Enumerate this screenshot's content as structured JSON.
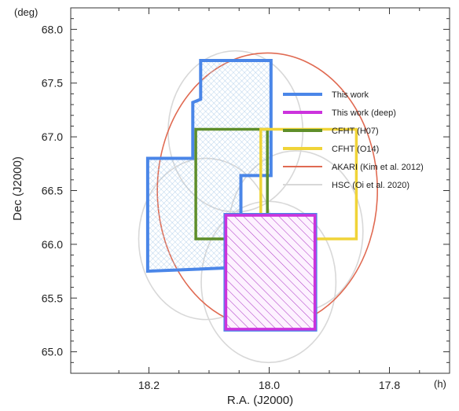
{
  "chart_data": {
    "type": "line",
    "xlabel": "R.A. (J2000)",
    "ylabel": "Dec (J2000)",
    "x_unit": "(h)",
    "y_unit": "(deg)",
    "x_inverted": true,
    "xlim": [
      18.33,
      17.7
    ],
    "ylim": [
      64.8,
      68.2
    ],
    "xticks": [
      18.2,
      18.0,
      17.8
    ],
    "xticklabels": [
      "18.2",
      "18.0",
      "17.8"
    ],
    "yticks": [
      65.0,
      65.5,
      66.0,
      66.5,
      67.0,
      67.5,
      68.0
    ],
    "yticklabels": [
      "65.0",
      "65.5",
      "66.0",
      "66.5",
      "67.0",
      "67.5",
      "68.0"
    ],
    "legend_position": "right",
    "series": [
      {
        "name": "This work",
        "color": "#4a86e8",
        "style": "outline-hatched",
        "points": [
          [
            18.114,
            67.71
          ],
          [
            18.114,
            67.35
          ],
          [
            18.127,
            67.32
          ],
          [
            18.127,
            66.8
          ],
          [
            18.202,
            66.8
          ],
          [
            18.202,
            65.75
          ],
          [
            18.072,
            65.78
          ],
          [
            18.072,
            65.21
          ],
          [
            17.924,
            65.21
          ],
          [
            17.924,
            66.27
          ],
          [
            18.047,
            66.27
          ],
          [
            18.047,
            66.64
          ],
          [
            17.997,
            66.64
          ],
          [
            17.997,
            67.71
          ]
        ]
      },
      {
        "name": "This work (deep)",
        "color": "#cc33dd",
        "style": "outline-hatched",
        "points": [
          [
            18.072,
            66.27
          ],
          [
            17.924,
            66.27
          ],
          [
            17.924,
            65.21
          ],
          [
            18.072,
            65.21
          ]
        ]
      },
      {
        "name": "CFHT (H07)",
        "color": "#5e8e2a",
        "style": "outline",
        "points": [
          [
            18.122,
            67.07
          ],
          [
            18.003,
            67.07
          ],
          [
            18.003,
            66.05
          ],
          [
            18.122,
            66.05
          ]
        ]
      },
      {
        "name": "CFHT (O14)",
        "color": "#f0d438",
        "style": "outline",
        "points": [
          [
            18.014,
            67.07
          ],
          [
            17.855,
            67.07
          ],
          [
            17.855,
            66.05
          ],
          [
            18.014,
            66.05
          ]
        ]
      },
      {
        "name": "AKARI (Kim et al. 2012)",
        "color": "#e06a52",
        "style": "circle",
        "center": [
          18.003,
          66.5
        ],
        "ra_radius": 0.183,
        "dec_radius": 1.28
      },
      {
        "name": "HSC (Oi et al. 2020)",
        "color": "#d8d8d8",
        "style": "circles",
        "fields": [
          {
            "center": [
              18.056,
              67.05
            ],
            "ra_radius": 0.112,
            "dec_radius": 0.75
          },
          {
            "center": [
              18.105,
              66.05
            ],
            "ra_radius": 0.112,
            "dec_radius": 0.75
          },
          {
            "center": [
              17.956,
              66.12
            ],
            "ra_radius": 0.112,
            "dec_radius": 0.75
          },
          {
            "center": [
              18.001,
              65.65
            ],
            "ra_radius": 0.112,
            "dec_radius": 0.75
          }
        ]
      }
    ]
  }
}
